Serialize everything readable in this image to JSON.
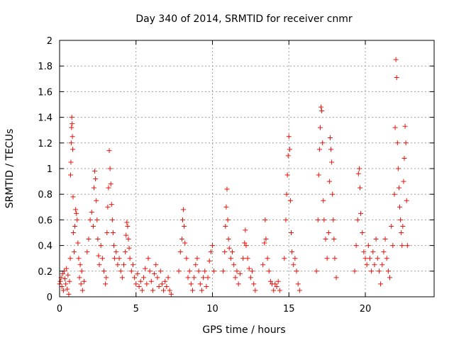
{
  "chart_data": {
    "type": "scatter",
    "title": "Day 340 of 2014, SRMTID for receiver cnmr",
    "xlabel": "GPS time / hours",
    "ylabel": "SRMTID / TECUs",
    "xlim": [
      0,
      24.5
    ],
    "ylim": [
      0,
      2
    ],
    "xticks": [
      0,
      5,
      10,
      15,
      20
    ],
    "xtick_labels": [
      "0",
      "5",
      "10",
      "15",
      "20"
    ],
    "yticks": [
      0,
      0.2,
      0.4,
      0.6,
      0.8,
      1,
      1.2,
      1.4,
      1.6,
      1.8,
      2
    ],
    "ytick_labels": [
      "0",
      "0.2",
      "0.4",
      "0.6",
      "0.8",
      "1",
      "1.2",
      "1.4",
      "1.6",
      "1.8",
      "2"
    ],
    "grid": true,
    "marker": "plus",
    "color": "#e8140c",
    "series": [
      {
        "name": "SRMTID",
        "points": [
          [
            0.0,
            0.1
          ],
          [
            0.05,
            0.12
          ],
          [
            0.1,
            0.15
          ],
          [
            0.15,
            0.08
          ],
          [
            0.2,
            0.18
          ],
          [
            0.25,
            0.05
          ],
          [
            0.3,
            0.2
          ],
          [
            0.35,
            0.14
          ],
          [
            0.4,
            0.1
          ],
          [
            0.45,
            0.22
          ],
          [
            0.5,
            0.06
          ],
          [
            0.55,
            0.17
          ],
          [
            0.6,
            0.02
          ],
          [
            0.65,
            0.12
          ],
          [
            0.7,
            0.3
          ],
          [
            0.72,
            0.95
          ],
          [
            0.74,
            1.05
          ],
          [
            0.76,
            1.2
          ],
          [
            0.78,
            1.32
          ],
          [
            0.8,
            1.4
          ],
          [
            0.82,
            1.35
          ],
          [
            0.84,
            1.25
          ],
          [
            0.86,
            1.15
          ],
          [
            0.88,
            0.78
          ],
          [
            0.9,
            0.5
          ],
          [
            0.95,
            0.35
          ],
          [
            1.0,
            0.55
          ],
          [
            1.05,
            0.68
          ],
          [
            1.1,
            0.65
          ],
          [
            1.15,
            0.6
          ],
          [
            1.2,
            0.42
          ],
          [
            1.25,
            0.3
          ],
          [
            1.3,
            0.15
          ],
          [
            1.35,
            0.25
          ],
          [
            1.4,
            0.1
          ],
          [
            1.45,
            0.2
          ],
          [
            1.5,
            0.05
          ],
          [
            1.6,
            0.12
          ],
          [
            1.8,
            0.35
          ],
          [
            1.9,
            0.45
          ],
          [
            2.0,
            0.6
          ],
          [
            2.1,
            0.66
          ],
          [
            2.2,
            0.55
          ],
          [
            2.25,
            0.85
          ],
          [
            2.3,
            0.98
          ],
          [
            2.35,
            0.92
          ],
          [
            2.4,
            0.75
          ],
          [
            2.45,
            0.6
          ],
          [
            2.5,
            0.45
          ],
          [
            2.55,
            0.32
          ],
          [
            2.6,
            0.25
          ],
          [
            2.7,
            0.4
          ],
          [
            2.8,
            0.3
          ],
          [
            2.9,
            0.2
          ],
          [
            3.0,
            0.1
          ],
          [
            3.05,
            0.15
          ],
          [
            3.1,
            0.5
          ],
          [
            3.15,
            0.7
          ],
          [
            3.2,
            0.85
          ],
          [
            3.25,
            1.14
          ],
          [
            3.3,
            1.0
          ],
          [
            3.35,
            0.88
          ],
          [
            3.4,
            0.72
          ],
          [
            3.45,
            0.6
          ],
          [
            3.5,
            0.5
          ],
          [
            3.55,
            0.4
          ],
          [
            3.6,
            0.3
          ],
          [
            3.7,
            0.35
          ],
          [
            3.8,
            0.25
          ],
          [
            3.9,
            0.3
          ],
          [
            4.0,
            0.2
          ],
          [
            4.1,
            0.15
          ],
          [
            4.2,
            0.25
          ],
          [
            4.3,
            0.35
          ],
          [
            4.35,
            0.48
          ],
          [
            4.4,
            0.58
          ],
          [
            4.45,
            0.55
          ],
          [
            4.5,
            0.45
          ],
          [
            4.55,
            0.38
          ],
          [
            4.6,
            0.3
          ],
          [
            4.7,
            0.2
          ],
          [
            4.8,
            0.25
          ],
          [
            4.9,
            0.15
          ],
          [
            5.0,
            0.1
          ],
          [
            5.1,
            0.18
          ],
          [
            5.2,
            0.08
          ],
          [
            5.3,
            0.12
          ],
          [
            5.4,
            0.05
          ],
          [
            5.5,
            0.15
          ],
          [
            5.6,
            0.22
          ],
          [
            5.7,
            0.1
          ],
          [
            5.8,
            0.3
          ],
          [
            5.9,
            0.2
          ],
          [
            6.0,
            0.12
          ],
          [
            6.1,
            0.05
          ],
          [
            6.2,
            0.18
          ],
          [
            6.3,
            0.25
          ],
          [
            6.4,
            0.15
          ],
          [
            6.5,
            0.08
          ],
          [
            6.6,
            0.2
          ],
          [
            6.7,
            0.1
          ],
          [
            6.8,
            0.05
          ],
          [
            6.9,
            0.12
          ],
          [
            7.0,
            0.08
          ],
          [
            7.1,
            0.15
          ],
          [
            7.2,
            0.05
          ],
          [
            7.3,
            0.02
          ],
          [
            7.8,
            0.2
          ],
          [
            7.9,
            0.35
          ],
          [
            8.0,
            0.45
          ],
          [
            8.05,
            0.6
          ],
          [
            8.1,
            0.68
          ],
          [
            8.15,
            0.55
          ],
          [
            8.2,
            0.42
          ],
          [
            8.3,
            0.3
          ],
          [
            8.4,
            0.15
          ],
          [
            8.5,
            0.2
          ],
          [
            8.6,
            0.1
          ],
          [
            8.7,
            0.05
          ],
          [
            8.8,
            0.15
          ],
          [
            8.9,
            0.25
          ],
          [
            9.0,
            0.3
          ],
          [
            9.1,
            0.2
          ],
          [
            9.2,
            0.1
          ],
          [
            9.3,
            0.05
          ],
          [
            9.4,
            0.15
          ],
          [
            9.5,
            0.2
          ],
          [
            9.6,
            0.08
          ],
          [
            9.7,
            0.15
          ],
          [
            9.8,
            0.28
          ],
          [
            9.9,
            0.35
          ],
          [
            10.0,
            0.4
          ],
          [
            10.1,
            0.2
          ],
          [
            10.7,
            0.2
          ],
          [
            10.8,
            0.35
          ],
          [
            10.85,
            0.55
          ],
          [
            10.9,
            0.7
          ],
          [
            10.95,
            0.84
          ],
          [
            11.0,
            0.6
          ],
          [
            11.05,
            0.45
          ],
          [
            11.1,
            0.38
          ],
          [
            11.2,
            0.3
          ],
          [
            11.3,
            0.35
          ],
          [
            11.4,
            0.25
          ],
          [
            11.5,
            0.15
          ],
          [
            11.6,
            0.2
          ],
          [
            11.7,
            0.1
          ],
          [
            11.8,
            0.18
          ],
          [
            12.0,
            0.3
          ],
          [
            12.1,
            0.42
          ],
          [
            12.15,
            0.52
          ],
          [
            12.2,
            0.4
          ],
          [
            12.3,
            0.3
          ],
          [
            12.4,
            0.22
          ],
          [
            12.5,
            0.15
          ],
          [
            12.6,
            0.2
          ],
          [
            12.7,
            0.1
          ],
          [
            12.8,
            0.05
          ],
          [
            13.3,
            0.25
          ],
          [
            13.4,
            0.42
          ],
          [
            13.45,
            0.6
          ],
          [
            13.5,
            0.45
          ],
          [
            13.6,
            0.3
          ],
          [
            13.7,
            0.2
          ],
          [
            13.8,
            0.12
          ],
          [
            13.9,
            0.1
          ],
          [
            14.0,
            0.05
          ],
          [
            14.1,
            0.1
          ],
          [
            14.2,
            0.08
          ],
          [
            14.3,
            0.12
          ],
          [
            14.4,
            0.05
          ],
          [
            14.7,
            0.3
          ],
          [
            14.8,
            0.6
          ],
          [
            14.85,
            0.8
          ],
          [
            14.9,
            0.95
          ],
          [
            14.95,
            1.1
          ],
          [
            15.0,
            1.25
          ],
          [
            15.05,
            1.15
          ],
          [
            15.1,
            0.75
          ],
          [
            15.15,
            0.5
          ],
          [
            15.2,
            0.35
          ],
          [
            15.3,
            0.25
          ],
          [
            15.4,
            0.3
          ],
          [
            15.5,
            0.2
          ],
          [
            15.6,
            0.1
          ],
          [
            15.7,
            0.05
          ],
          [
            16.8,
            0.2
          ],
          [
            16.9,
            0.6
          ],
          [
            16.95,
            0.95
          ],
          [
            17.0,
            1.15
          ],
          [
            17.05,
            1.32
          ],
          [
            17.1,
            1.48
          ],
          [
            17.15,
            1.45
          ],
          [
            17.2,
            1.2
          ],
          [
            17.25,
            0.75
          ],
          [
            17.3,
            0.6
          ],
          [
            17.4,
            0.45
          ],
          [
            17.5,
            0.3
          ],
          [
            17.6,
            0.5
          ],
          [
            17.65,
            0.9
          ],
          [
            17.7,
            1.24
          ],
          [
            17.75,
            1.15
          ],
          [
            17.8,
            1.05
          ],
          [
            17.85,
            0.8
          ],
          [
            17.9,
            0.6
          ],
          [
            17.95,
            0.45
          ],
          [
            18.0,
            0.3
          ],
          [
            18.1,
            0.15
          ],
          [
            19.3,
            0.2
          ],
          [
            19.4,
            0.4
          ],
          [
            19.5,
            0.6
          ],
          [
            19.55,
            0.96
          ],
          [
            19.6,
            1.0
          ],
          [
            19.65,
            0.85
          ],
          [
            19.7,
            0.65
          ],
          [
            19.8,
            0.5
          ],
          [
            19.9,
            0.35
          ],
          [
            20.0,
            0.3
          ],
          [
            20.1,
            0.25
          ],
          [
            20.2,
            0.4
          ],
          [
            20.3,
            0.3
          ],
          [
            20.4,
            0.2
          ],
          [
            20.5,
            0.35
          ],
          [
            20.6,
            0.25
          ],
          [
            20.7,
            0.45
          ],
          [
            20.8,
            0.3
          ],
          [
            20.9,
            0.2
          ],
          [
            21.0,
            0.1
          ],
          [
            21.1,
            0.25
          ],
          [
            21.2,
            0.35
          ],
          [
            21.3,
            0.45
          ],
          [
            21.4,
            0.3
          ],
          [
            21.5,
            0.2
          ],
          [
            21.6,
            0.15
          ],
          [
            21.7,
            0.55
          ],
          [
            21.8,
            0.4
          ],
          [
            21.9,
            0.8
          ],
          [
            21.95,
            1.32
          ],
          [
            22.0,
            1.85
          ],
          [
            22.05,
            1.71
          ],
          [
            22.1,
            1.2
          ],
          [
            22.15,
            1.0
          ],
          [
            22.2,
            0.85
          ],
          [
            22.25,
            0.7
          ],
          [
            22.3,
            0.6
          ],
          [
            22.35,
            0.5
          ],
          [
            22.4,
            0.4
          ],
          [
            22.45,
            0.55
          ],
          [
            22.5,
            0.9
          ],
          [
            22.55,
            1.08
          ],
          [
            22.6,
            1.33
          ],
          [
            22.65,
            1.2
          ],
          [
            22.7,
            0.75
          ],
          [
            22.75,
            0.4
          ]
        ]
      }
    ]
  }
}
